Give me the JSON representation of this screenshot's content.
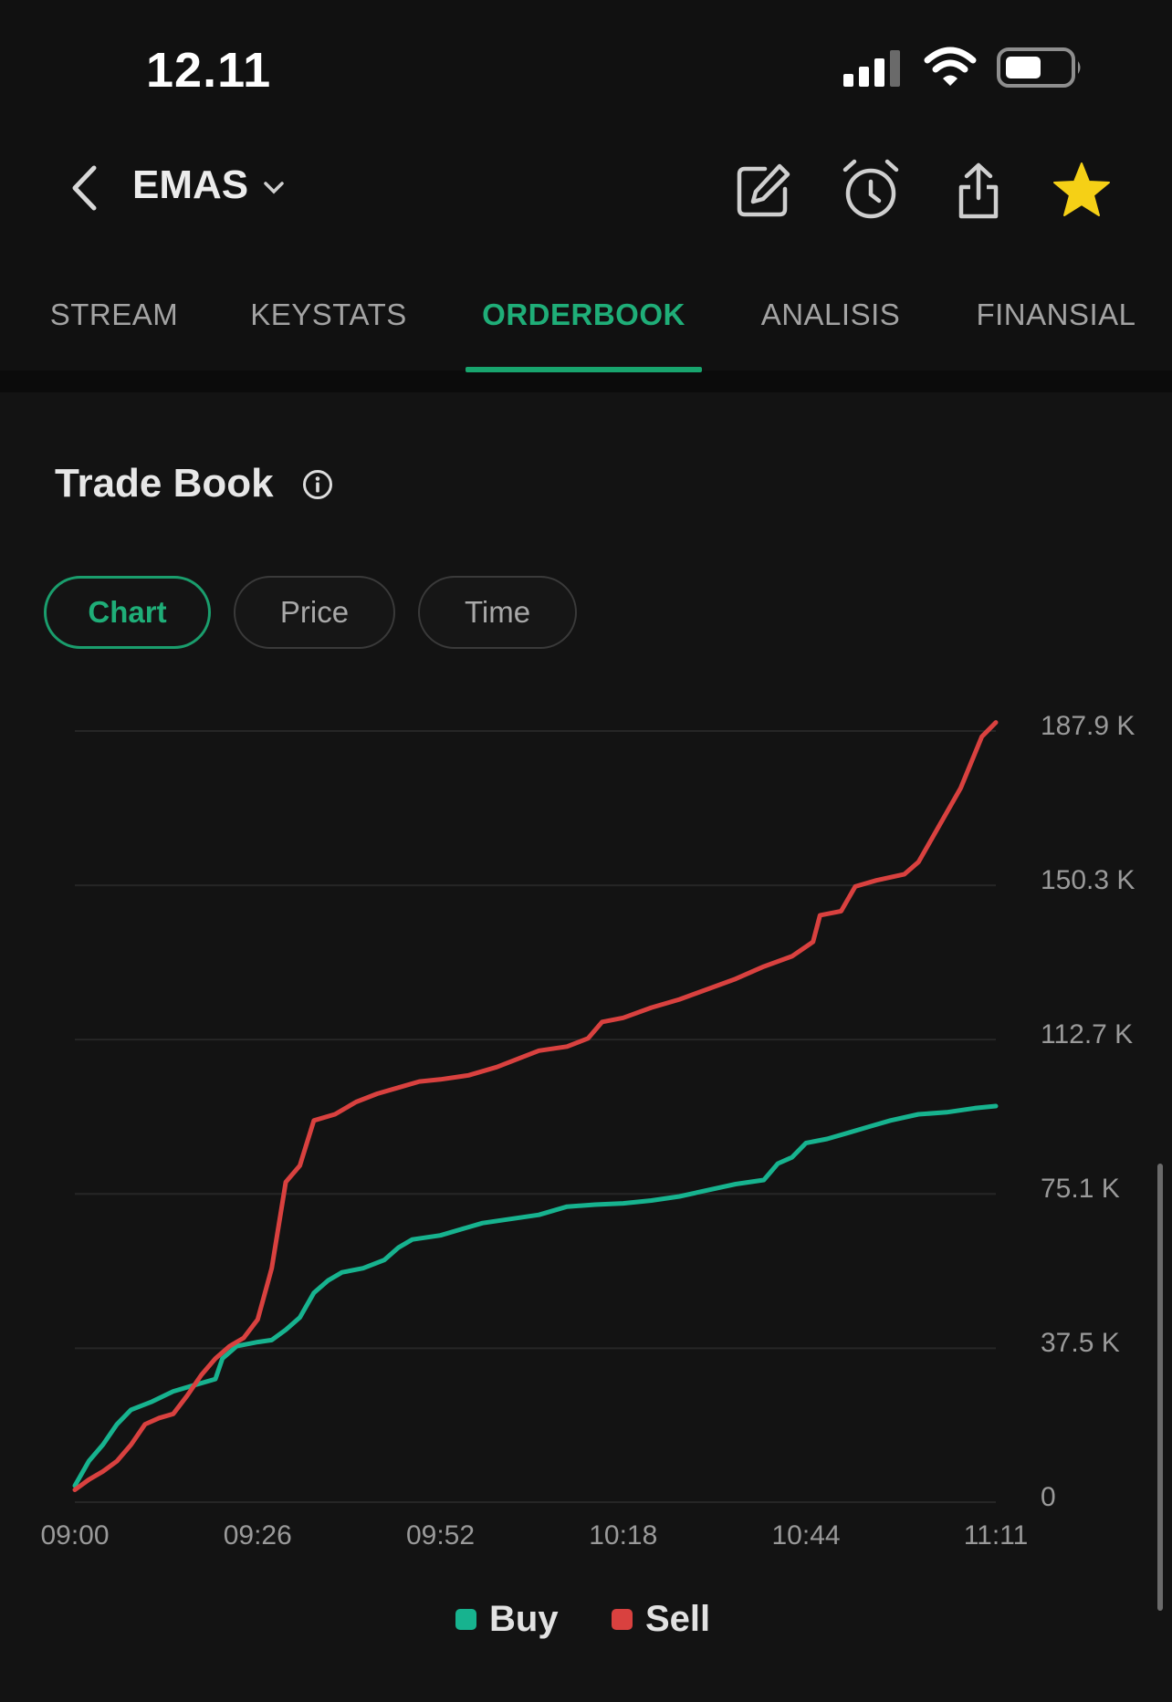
{
  "status_bar": {
    "time": "12.11"
  },
  "header": {
    "stock_code": "EMAS",
    "icons": [
      "back-chevron-icon",
      "dropdown-chevron-icon",
      "edit-icon",
      "alarm-icon",
      "share-icon",
      "star-icon"
    ]
  },
  "tabs": [
    {
      "label": "STREAM",
      "active": false
    },
    {
      "label": "KEYSTATS",
      "active": false
    },
    {
      "label": "ORDERBOOK",
      "active": true
    },
    {
      "label": "ANALISIS",
      "active": false
    },
    {
      "label": "FINANSIAL",
      "active": false
    }
  ],
  "section": {
    "title": "Trade Book"
  },
  "filters": [
    {
      "label": "Chart",
      "active": true
    },
    {
      "label": "Price",
      "active": false
    },
    {
      "label": "Time",
      "active": false
    }
  ],
  "colors": {
    "accent": "#1fae78",
    "buy": "#17b38f",
    "sell": "#d9413f",
    "star": "#f5d016"
  },
  "chart_data": {
    "type": "line",
    "y_ticks": [
      "187.9 K",
      "150.3 K",
      "112.7 K",
      "75.1 K",
      "37.5 K",
      "0"
    ],
    "y_tick_values": [
      187900,
      150300,
      112700,
      75100,
      37500,
      0
    ],
    "x_ticks": [
      "09:00",
      "09:26",
      "09:52",
      "10:18",
      "10:44",
      "11:11"
    ],
    "ylim": [
      0,
      187900
    ],
    "grid": true,
    "legend_position": "bottom",
    "legend": [
      "Buy",
      "Sell"
    ],
    "series": [
      {
        "name": "Buy",
        "color": "#17b38f",
        "points": [
          [
            "09:00",
            4000
          ],
          [
            "09:02",
            10000
          ],
          [
            "09:04",
            14000
          ],
          [
            "09:06",
            19000
          ],
          [
            "09:08",
            22500
          ],
          [
            "09:11",
            24500
          ],
          [
            "09:14",
            27000
          ],
          [
            "09:17",
            28500
          ],
          [
            "09:20",
            30000
          ],
          [
            "09:21",
            35000
          ],
          [
            "09:23",
            38000
          ],
          [
            "09:26",
            39000
          ],
          [
            "09:28",
            39500
          ],
          [
            "09:30",
            42000
          ],
          [
            "09:32",
            45000
          ],
          [
            "09:34",
            51000
          ],
          [
            "09:36",
            54000
          ],
          [
            "09:38",
            56000
          ],
          [
            "09:41",
            57000
          ],
          [
            "09:44",
            59000
          ],
          [
            "09:46",
            62000
          ],
          [
            "09:48",
            64000
          ],
          [
            "09:52",
            65000
          ],
          [
            "09:55",
            66500
          ],
          [
            "09:58",
            68000
          ],
          [
            "10:02",
            69000
          ],
          [
            "10:06",
            70000
          ],
          [
            "10:10",
            72000
          ],
          [
            "10:14",
            72500
          ],
          [
            "10:18",
            72800
          ],
          [
            "10:22",
            73500
          ],
          [
            "10:26",
            74500
          ],
          [
            "10:30",
            76000
          ],
          [
            "10:34",
            77500
          ],
          [
            "10:38",
            78500
          ],
          [
            "10:40",
            82500
          ],
          [
            "10:42",
            84000
          ],
          [
            "10:44",
            87500
          ],
          [
            "10:47",
            88500
          ],
          [
            "10:50",
            90000
          ],
          [
            "10:53",
            91500
          ],
          [
            "10:56",
            93000
          ],
          [
            "11:00",
            94500
          ],
          [
            "11:04",
            95000
          ],
          [
            "11:08",
            96000
          ],
          [
            "11:11",
            96500
          ]
        ]
      },
      {
        "name": "Sell",
        "color": "#d9413f",
        "points": [
          [
            "09:00",
            3000
          ],
          [
            "09:02",
            5500
          ],
          [
            "09:04",
            7500
          ],
          [
            "09:06",
            10000
          ],
          [
            "09:08",
            14000
          ],
          [
            "09:10",
            19000
          ],
          [
            "09:12",
            20500
          ],
          [
            "09:14",
            21500
          ],
          [
            "09:16",
            26000
          ],
          [
            "09:18",
            31000
          ],
          [
            "09:20",
            35000
          ],
          [
            "09:22",
            38000
          ],
          [
            "09:24",
            40000
          ],
          [
            "09:26",
            44500
          ],
          [
            "09:28",
            57000
          ],
          [
            "09:30",
            78000
          ],
          [
            "09:32",
            82000
          ],
          [
            "09:34",
            93000
          ],
          [
            "09:37",
            94500
          ],
          [
            "09:40",
            97500
          ],
          [
            "09:43",
            99500
          ],
          [
            "09:46",
            101000
          ],
          [
            "09:49",
            102500
          ],
          [
            "09:52",
            103000
          ],
          [
            "09:56",
            104000
          ],
          [
            "10:00",
            106000
          ],
          [
            "10:03",
            108000
          ],
          [
            "10:06",
            110000
          ],
          [
            "10:10",
            111000
          ],
          [
            "10:13",
            113000
          ],
          [
            "10:15",
            117000
          ],
          [
            "10:18",
            118000
          ],
          [
            "10:22",
            120500
          ],
          [
            "10:26",
            122500
          ],
          [
            "10:30",
            125000
          ],
          [
            "10:34",
            127500
          ],
          [
            "10:38",
            130500
          ],
          [
            "10:42",
            133000
          ],
          [
            "10:45",
            136500
          ],
          [
            "10:46",
            143000
          ],
          [
            "10:49",
            144000
          ],
          [
            "10:51",
            150000
          ],
          [
            "10:54",
            151500
          ],
          [
            "10:58",
            153000
          ],
          [
            "11:00",
            156000
          ],
          [
            "11:03",
            165000
          ],
          [
            "11:06",
            174000
          ],
          [
            "11:09",
            186500
          ],
          [
            "11:11",
            190000
          ]
        ]
      }
    ]
  }
}
